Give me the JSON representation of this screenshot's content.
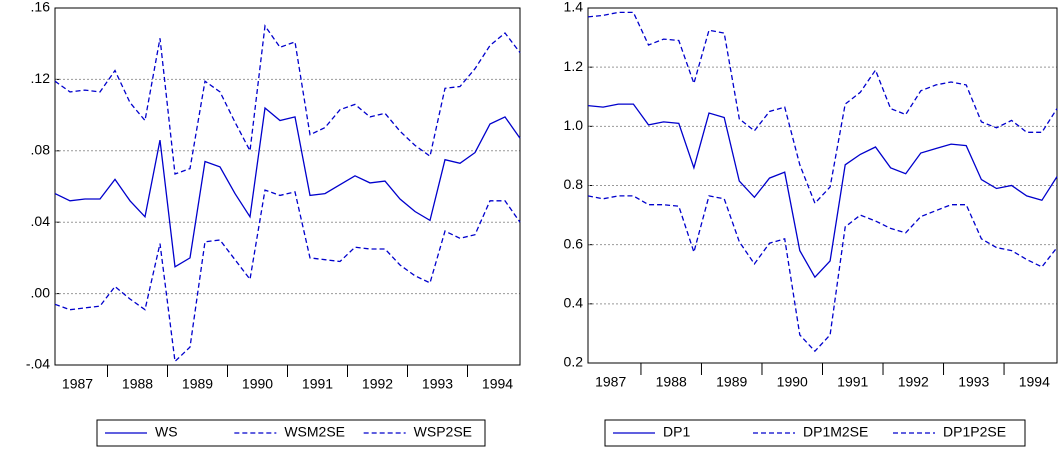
{
  "chart_data": [
    {
      "type": "line",
      "categories": [
        null,
        "1987",
        null,
        null,
        null,
        "1988",
        null,
        null,
        null,
        "1989",
        null,
        null,
        null,
        "1990",
        null,
        null,
        null,
        "1991",
        null,
        null,
        null,
        "1992",
        null,
        null,
        null,
        "1993",
        null,
        null,
        null,
        "1994",
        null,
        null
      ],
      "series": [
        {
          "name": "WS",
          "color": "#0000cc",
          "dashed": false,
          "values": [
            0.056,
            0.052,
            0.053,
            0.053,
            0.064,
            0.052,
            0.043,
            0.086,
            0.015,
            0.02,
            0.074,
            0.071,
            0.056,
            0.043,
            0.104,
            0.097,
            0.099,
            0.055,
            0.056,
            0.061,
            0.066,
            0.062,
            0.063,
            0.053,
            0.046,
            0.041,
            0.075,
            0.073,
            0.079,
            0.095,
            0.099,
            0.087
          ]
        },
        {
          "name": "WSM2SE",
          "color": "#0000cc",
          "dashed": true,
          "values": [
            -0.006,
            -0.009,
            -0.008,
            -0.007,
            0.004,
            -0.003,
            -0.009,
            0.028,
            -0.038,
            -0.03,
            0.029,
            0.03,
            0.019,
            0.008,
            0.058,
            0.055,
            0.057,
            0.02,
            0.019,
            0.018,
            0.026,
            0.025,
            0.025,
            0.016,
            0.01,
            0.006,
            0.035,
            0.031,
            0.033,
            0.052,
            0.052,
            0.04
          ]
        },
        {
          "name": "WSP2SE",
          "color": "#0000cc",
          "dashed": true,
          "values": [
            0.119,
            0.113,
            0.114,
            0.113,
            0.125,
            0.107,
            0.097,
            0.143,
            0.067,
            0.07,
            0.119,
            0.113,
            0.096,
            0.08,
            0.15,
            0.138,
            0.141,
            0.089,
            0.093,
            0.103,
            0.106,
            0.099,
            0.101,
            0.091,
            0.083,
            0.077,
            0.115,
            0.116,
            0.126,
            0.139,
            0.146,
            0.135
          ]
        }
      ],
      "ylim": [
        -0.04,
        0.16
      ],
      "yticks": [
        {
          "value": -0.04,
          "label": "-.04"
        },
        {
          "value": 0,
          "label": ".00"
        },
        {
          "value": 0.04,
          "label": ".04"
        },
        {
          "value": 0.08,
          "label": ".08"
        },
        {
          "value": 0.12,
          "label": ".12"
        },
        {
          "value": 0.16,
          "label": ".16"
        }
      ],
      "grid": true
    },
    {
      "type": "line",
      "categories": [
        null,
        "1987",
        null,
        null,
        null,
        "1988",
        null,
        null,
        null,
        "1989",
        null,
        null,
        null,
        "1990",
        null,
        null,
        null,
        "1991",
        null,
        null,
        null,
        "1992",
        null,
        null,
        null,
        "1993",
        null,
        null,
        null,
        "1994",
        null,
        null
      ],
      "series": [
        {
          "name": "DP1",
          "color": "#0000cc",
          "dashed": false,
          "values": [
            1.07,
            1.065,
            1.075,
            1.075,
            1.005,
            1.015,
            1.01,
            0.86,
            1.045,
            1.03,
            0.815,
            0.76,
            0.825,
            0.845,
            0.58,
            0.49,
            0.545,
            0.87,
            0.905,
            0.93,
            0.86,
            0.84,
            0.91,
            0.925,
            0.94,
            0.935,
            0.82,
            0.79,
            0.8,
            0.765,
            0.75,
            0.83
          ]
        },
        {
          "name": "DP1M2SE",
          "color": "#0000cc",
          "dashed": true,
          "values": [
            0.765,
            0.755,
            0.765,
            0.765,
            0.735,
            0.735,
            0.73,
            0.575,
            0.765,
            0.755,
            0.61,
            0.535,
            0.605,
            0.62,
            0.295,
            0.24,
            0.295,
            0.66,
            0.7,
            0.68,
            0.655,
            0.64,
            0.695,
            0.715,
            0.735,
            0.735,
            0.62,
            0.59,
            0.58,
            0.55,
            0.525,
            0.59
          ]
        },
        {
          "name": "DP1P2SE",
          "color": "#0000cc",
          "dashed": true,
          "values": [
            1.37,
            1.375,
            1.385,
            1.385,
            1.275,
            1.295,
            1.29,
            1.145,
            1.325,
            1.315,
            1.025,
            0.985,
            1.05,
            1.065,
            0.87,
            0.74,
            0.795,
            1.075,
            1.115,
            1.19,
            1.06,
            1.04,
            1.12,
            1.14,
            1.15,
            1.14,
            1.015,
            0.995,
            1.02,
            0.98,
            0.98,
            1.06
          ]
        }
      ],
      "ylim": [
        0.2,
        1.4
      ],
      "yticks": [
        0.2,
        0.4,
        0.6,
        0.8,
        {
          "value": 1.0,
          "label": "1.0"
        },
        1.2,
        1.4
      ],
      "grid": true
    }
  ]
}
